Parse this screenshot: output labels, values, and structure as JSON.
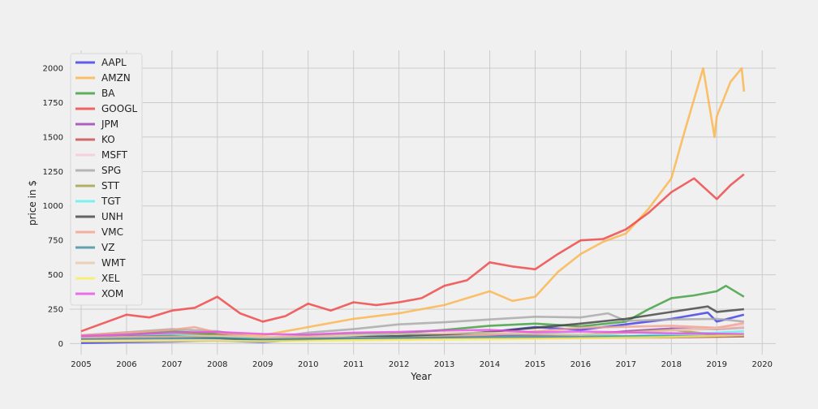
{
  "chart_data": {
    "type": "line",
    "xlabel": "Year",
    "ylabel": "price in $",
    "xlim": [
      2004.75,
      2020.3
    ],
    "ylim": [
      -80,
      2130
    ],
    "x_ticks": [
      2005,
      2006,
      2007,
      2008,
      2009,
      2010,
      2011,
      2012,
      2013,
      2014,
      2015,
      2016,
      2017,
      2018,
      2019,
      2020
    ],
    "y_ticks": [
      0,
      250,
      500,
      750,
      1000,
      1250,
      1500,
      1750,
      2000
    ],
    "grid": true,
    "legend_position": "top-left",
    "series": [
      {
        "name": "AAPL",
        "color": "#3a3ae8",
        "x": [
          2005,
          2006,
          2007,
          2008,
          2009,
          2010,
          2011,
          2012,
          2013,
          2014,
          2015,
          2016,
          2017,
          2018,
          2018.8,
          2019,
          2019.6
        ],
        "y": [
          5,
          10,
          15,
          22,
          12,
          30,
          45,
          75,
          60,
          85,
          120,
          100,
          140,
          180,
          225,
          160,
          210
        ]
      },
      {
        "name": "AMZN",
        "color": "#fdb347",
        "x": [
          2005,
          2006,
          2007,
          2008,
          2009,
          2010,
          2011,
          2012,
          2013,
          2014,
          2014.5,
          2015,
          2015.5,
          2016,
          2016.5,
          2017,
          2017.5,
          2018,
          2018.3,
          2018.7,
          2018.95,
          2019,
          2019.3,
          2019.55,
          2019.6
        ],
        "y": [
          40,
          40,
          60,
          80,
          60,
          120,
          180,
          220,
          280,
          380,
          310,
          340,
          520,
          650,
          740,
          800,
          980,
          1200,
          1550,
          2000,
          1500,
          1650,
          1900,
          2000,
          1830
        ]
      },
      {
        "name": "BA",
        "color": "#3a9e3a",
        "x": [
          2005,
          2006,
          2007,
          2008,
          2009,
          2010,
          2011,
          2012,
          2013,
          2014,
          2015,
          2016,
          2017,
          2017.5,
          2018,
          2018.5,
          2019,
          2019.2,
          2019.6
        ],
        "y": [
          50,
          65,
          90,
          70,
          35,
          60,
          70,
          75,
          100,
          130,
          145,
          125,
          160,
          250,
          330,
          350,
          380,
          420,
          340
        ]
      },
      {
        "name": "GOOGL",
        "color": "#f04040",
        "x": [
          2005,
          2006,
          2006.5,
          2007,
          2007.5,
          2008,
          2008.5,
          2009,
          2009.5,
          2010,
          2010.5,
          2011,
          2011.5,
          2012,
          2012.5,
          2013,
          2013.5,
          2014,
          2014.5,
          2015,
          2015.5,
          2016,
          2016.5,
          2017,
          2017.5,
          2018,
          2018.5,
          2019,
          2019.3,
          2019.6
        ],
        "y": [
          90,
          210,
          190,
          240,
          260,
          340,
          220,
          160,
          200,
          290,
          240,
          300,
          280,
          300,
          330,
          420,
          460,
          590,
          560,
          540,
          650,
          750,
          760,
          830,
          950,
          1100,
          1200,
          1050,
          1150,
          1230
        ]
      },
      {
        "name": "JPM",
        "color": "#9c3ab5",
        "x": [
          2005,
          2007,
          2008,
          2009,
          2010,
          2011,
          2012,
          2013,
          2014,
          2015,
          2016,
          2017,
          2018,
          2019,
          2019.6
        ],
        "y": [
          35,
          48,
          45,
          25,
          42,
          40,
          42,
          55,
          60,
          65,
          60,
          90,
          110,
          105,
          115
        ]
      },
      {
        "name": "KO",
        "color": "#c84848",
        "x": [
          2005,
          2008,
          2009,
          2012,
          2015,
          2018,
          2019.6
        ],
        "y": [
          42,
          60,
          45,
          38,
          42,
          45,
          52
        ]
      },
      {
        "name": "MSFT",
        "color": "#f8c8d4",
        "x": [
          2005,
          2008,
          2009,
          2012,
          2014,
          2016,
          2018,
          2019,
          2019.6
        ],
        "y": [
          25,
          30,
          18,
          30,
          40,
          55,
          100,
          115,
          135
        ]
      },
      {
        "name": "SPG",
        "color": "#a6a6a6",
        "x": [
          2005,
          2007,
          2008,
          2009,
          2010,
          2011,
          2012,
          2013,
          2014,
          2015,
          2016,
          2016.6,
          2017,
          2018,
          2019,
          2019.6
        ],
        "y": [
          60,
          105,
          90,
          35,
          80,
          105,
          140,
          155,
          175,
          195,
          190,
          220,
          165,
          175,
          180,
          160
        ]
      },
      {
        "name": "STT",
        "color": "#a0a040",
        "x": [
          2005,
          2007,
          2008,
          2009,
          2010,
          2012,
          2014,
          2016,
          2018,
          2019,
          2019.6
        ],
        "y": [
          50,
          70,
          60,
          20,
          40,
          45,
          70,
          65,
          100,
          65,
          60
        ]
      },
      {
        "name": "TGT",
        "color": "#5ef0f0",
        "x": [
          2005,
          2007,
          2009,
          2011,
          2013,
          2015,
          2017,
          2018,
          2019,
          2019.6
        ],
        "y": [
          50,
          65,
          35,
          50,
          60,
          75,
          55,
          70,
          80,
          90
        ]
      },
      {
        "name": "UNH",
        "color": "#404040",
        "x": [
          2005,
          2007,
          2008,
          2009,
          2010,
          2011,
          2012,
          2013,
          2014,
          2015,
          2016,
          2017,
          2018,
          2018.8,
          2019,
          2019.6
        ],
        "y": [
          45,
          55,
          40,
          22,
          30,
          45,
          55,
          65,
          85,
          115,
          145,
          180,
          230,
          270,
          230,
          250
        ]
      },
      {
        "name": "VMC",
        "color": "#f4a08c",
        "x": [
          2005,
          2007,
          2007.5,
          2008,
          2009,
          2010,
          2012,
          2014,
          2016,
          2018,
          2019,
          2019.6
        ],
        "y": [
          60,
          100,
          120,
          80,
          40,
          45,
          40,
          65,
          115,
          130,
          115,
          150
        ]
      },
      {
        "name": "VZ",
        "color": "#3f8ea0",
        "x": [
          2005,
          2008,
          2009,
          2012,
          2014,
          2016,
          2018,
          2019.6
        ],
        "y": [
          35,
          40,
          30,
          40,
          48,
          50,
          55,
          58
        ]
      },
      {
        "name": "WMT",
        "color": "#e8c8a8",
        "x": [
          2005,
          2008,
          2009,
          2012,
          2014,
          2016,
          2018,
          2019.6
        ],
        "y": [
          45,
          55,
          50,
          70,
          80,
          65,
          95,
          115
        ]
      },
      {
        "name": "XEL",
        "color": "#f8f05a",
        "x": [
          2005,
          2008,
          2009,
          2012,
          2015,
          2018,
          2019.6
        ],
        "y": [
          17,
          20,
          18,
          27,
          35,
          48,
          62
        ]
      },
      {
        "name": "XOM",
        "color": "#e84ce8",
        "x": [
          2005,
          2006,
          2007,
          2008,
          2009,
          2010,
          2011,
          2012,
          2013,
          2014,
          2015,
          2016,
          2017,
          2018,
          2019,
          2019.6
        ],
        "y": [
          55,
          65,
          80,
          85,
          70,
          65,
          80,
          85,
          95,
          100,
          82,
          88,
          82,
          75,
          72,
          70
        ]
      }
    ]
  }
}
